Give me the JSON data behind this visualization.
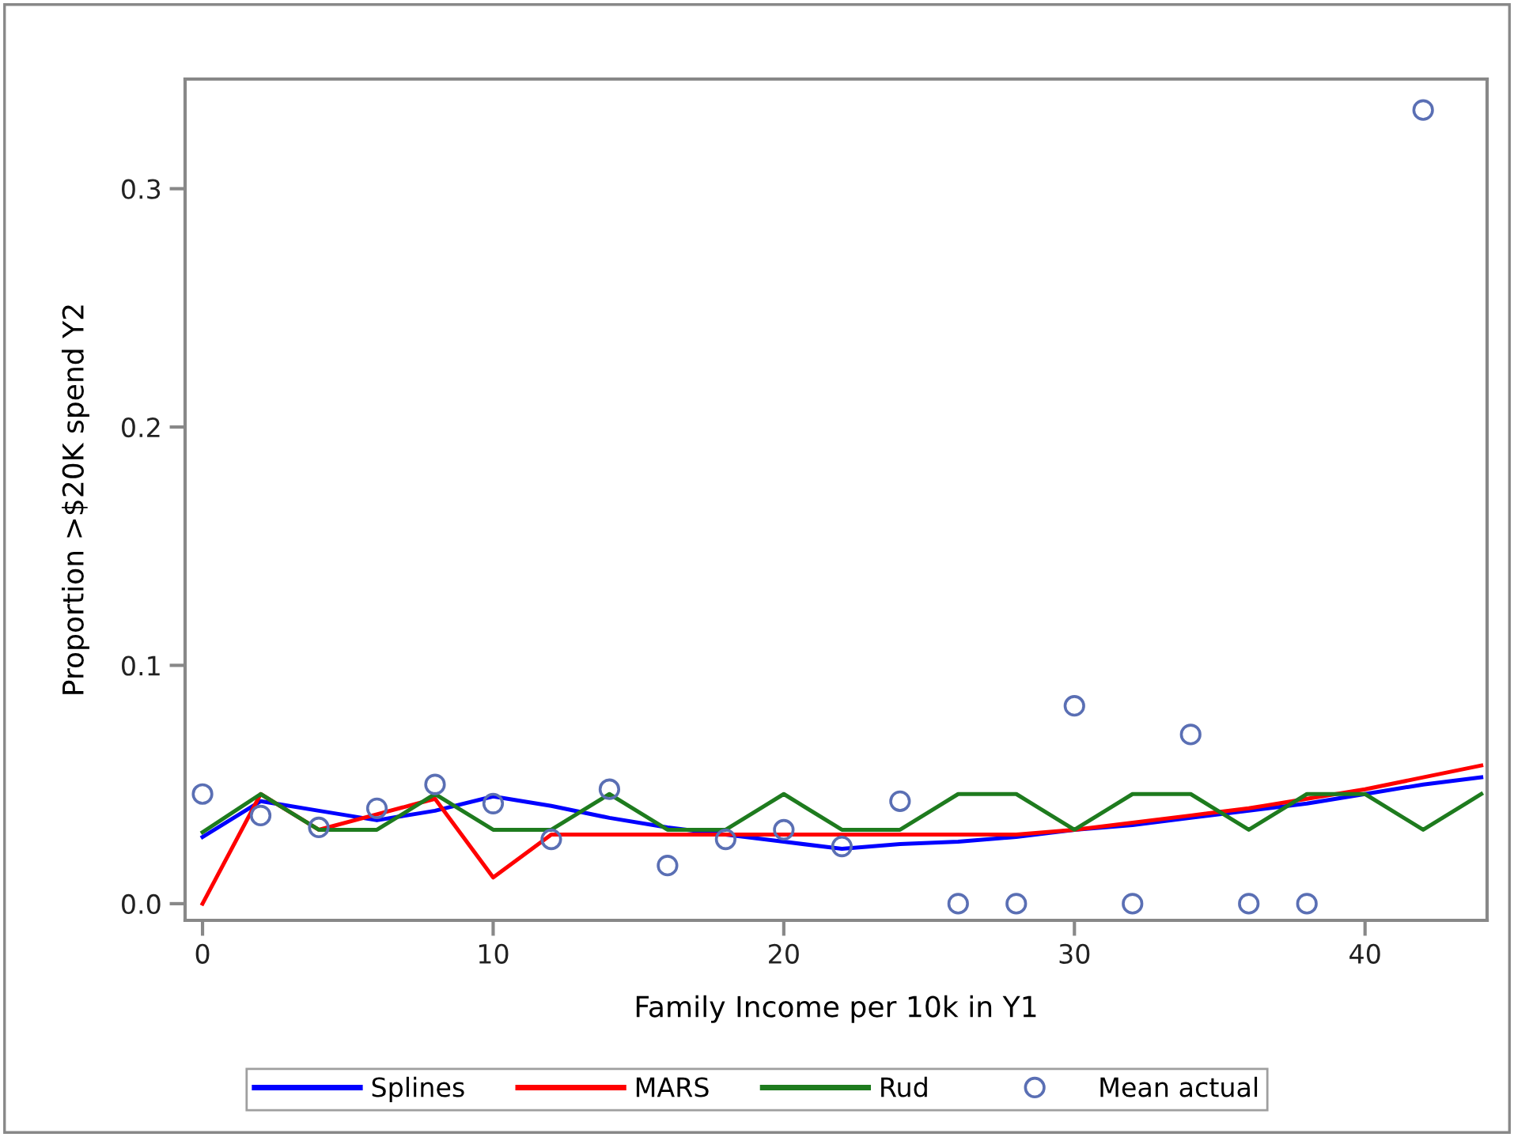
{
  "chart_data": {
    "type": "line",
    "xlabel": "Family Income per 10k in Y1",
    "ylabel": "Proportion >$20K spend Y2",
    "xlim": [
      -0.6,
      44.2
    ],
    "xticks": [
      0,
      10,
      20,
      30,
      40
    ],
    "ylim": [
      -0.007,
      0.346
    ],
    "yticks": [
      {
        "value": 0,
        "label": "0.0"
      },
      0.1,
      0.2,
      0.3
    ],
    "grid": false,
    "legend": "bottom",
    "marker": "none",
    "line_style": "solid",
    "series": [
      {
        "name": "Splines",
        "color": "#0000ff",
        "x": [
          0,
          2,
          4,
          6,
          8,
          10,
          12,
          14,
          16,
          18,
          20,
          22,
          24,
          26,
          28,
          30,
          32,
          34,
          36,
          38,
          40,
          42,
          44
        ],
        "values": [
          0.028,
          0.043,
          0.039,
          0.035,
          0.039,
          0.045,
          0.041,
          0.036,
          0.032,
          0.029,
          0.026,
          0.023,
          0.025,
          0.026,
          0.028,
          0.031,
          0.033,
          0.036,
          0.039,
          0.042,
          0.046,
          0.05,
          0.053
        ]
      },
      {
        "name": "MARS",
        "color": "#ff0000",
        "x": [
          0,
          2,
          4,
          6,
          8,
          10,
          12,
          14,
          16,
          18,
          20,
          22,
          24,
          26,
          28,
          30,
          32,
          34,
          36,
          38,
          40,
          42,
          44
        ],
        "values": [
          0,
          0.046,
          0.031,
          0.0375,
          0.044,
          0.011,
          0.029,
          0.029,
          0.029,
          0.029,
          0.029,
          0.029,
          0.029,
          0.029,
          0.029,
          0.031,
          0.034,
          0.037,
          0.04,
          0.044,
          0.048,
          0.053,
          0.058
        ]
      },
      {
        "name": "Rud",
        "color": "#1e7b1e",
        "x": [
          0,
          2,
          4,
          6,
          8,
          10,
          12,
          14,
          16,
          18,
          20,
          22,
          24,
          26,
          28,
          30,
          32,
          34,
          36,
          38,
          40,
          42,
          44
        ],
        "values": [
          0.03,
          0.046,
          0.031,
          0.031,
          0.046,
          0.031,
          0.031,
          0.046,
          0.031,
          0.031,
          0.046,
          0.031,
          0.031,
          0.046,
          0.046,
          0.031,
          0.046,
          0.046,
          0.031,
          0.046,
          0.046,
          0.031,
          0.046
        ]
      },
      {
        "name": "Mean actual",
        "type": "scatter",
        "marker": "circle",
        "color": "#5a6fb4",
        "x": [
          0,
          2,
          4,
          6,
          8,
          10,
          12,
          14,
          16,
          18,
          20,
          22,
          24,
          26,
          28,
          30,
          32,
          34,
          36,
          38,
          42
        ],
        "values": [
          0.046,
          0.037,
          0.032,
          0.04,
          0.05,
          0.042,
          0.027,
          0.048,
          0.016,
          0.027,
          0.031,
          0.024,
          0.043,
          0,
          0,
          0.083,
          0,
          0.071,
          0,
          0,
          0.333
        ]
      }
    ]
  }
}
